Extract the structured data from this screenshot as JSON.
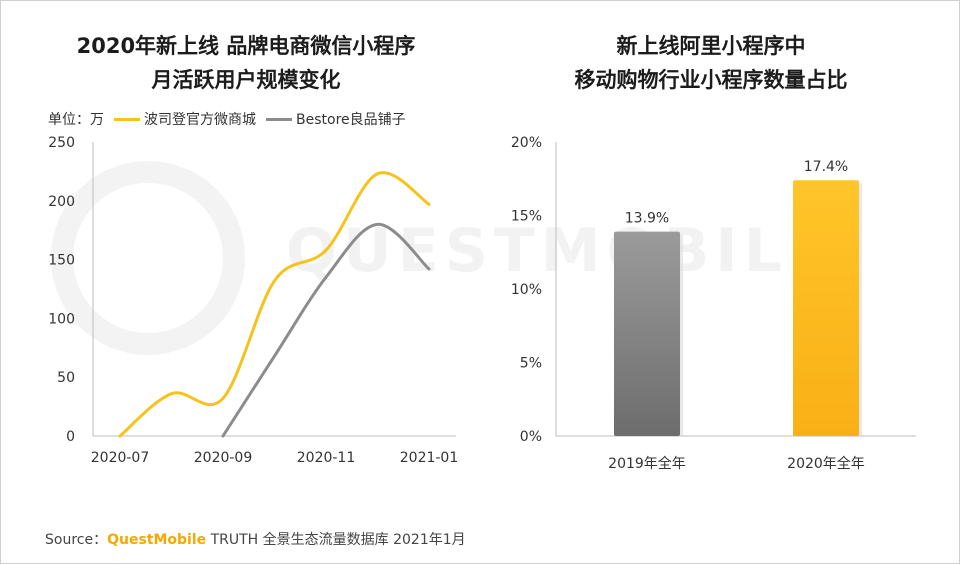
{
  "watermark": "QUESTMOBILE",
  "chart_data": [
    {
      "type": "line",
      "title": "2020年新上线 品牌电商微信小程序",
      "subtitle": "月活跃用户规模变化",
      "unit_label": "单位：万",
      "ylim": [
        0,
        250
      ],
      "yticks": [
        0,
        50,
        100,
        150,
        200,
        250
      ],
      "x_tick_labels": [
        "2020-07",
        "2020-09",
        "2020-11",
        "2021-01"
      ],
      "legend_position": "top-left",
      "series": [
        {
          "name": "波司登官方微商城",
          "color": "#f7c21c",
          "points": [
            [
              "2020-07",
              0
            ],
            [
              "2020-08",
              36
            ],
            [
              "2020-09",
              32
            ],
            [
              "2020-10",
              132
            ],
            [
              "2020-11",
              158
            ],
            [
              "2020-12",
              223
            ],
            [
              "2021-01",
              197
            ]
          ]
        },
        {
          "name": "Bestore良品铺子",
          "color": "#8c8c8c",
          "points": [
            [
              "2020-09",
              0
            ],
            [
              "2020-10",
              68
            ],
            [
              "2020-11",
              135
            ],
            [
              "2020-12",
              180
            ],
            [
              "2021-01",
              142
            ]
          ]
        }
      ]
    },
    {
      "type": "bar",
      "title": "新上线阿里小程序中",
      "subtitle": "移动购物行业小程序数量占比",
      "categories": [
        "2019年全年",
        "2020年全年"
      ],
      "values": [
        13.9,
        17.4
      ],
      "value_labels": [
        "13.9%",
        "17.4%"
      ],
      "colors": [
        "#7a7a7a",
        "#fbb81b"
      ],
      "ylim": [
        0,
        20
      ],
      "ytick_labels": [
        "0%",
        "5%",
        "10%",
        "15%",
        "20%"
      ]
    }
  ],
  "source": {
    "prefix": "Source：",
    "brand": "QuestMobile",
    "rest": " TRUTH 全景生态流量数据库 2021年1月"
  }
}
